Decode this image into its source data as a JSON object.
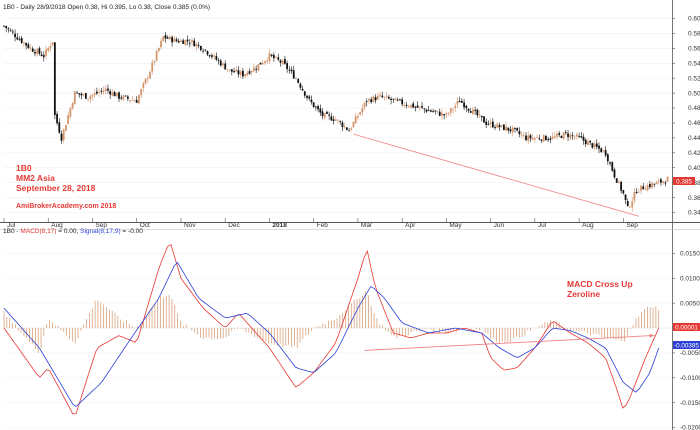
{
  "header": {
    "price_line": "1B0 - Daily 28/9/2018 Open 0.38, Hi 0.395, Lo 0.38, Close 0.385 (0.0%)",
    "macd_prefix": "1B0 - ",
    "macd_term": "MACD(8,17)",
    "macd_val": " = 0.00, ",
    "signal_term": "Signal(8,17,9)",
    "signal_val": " = -0.00"
  },
  "annotations": {
    "symbol": "1B0",
    "company": "MM2 Asia",
    "date": "September 28, 2018",
    "website": "AmiBrokerAcademy.com  2018",
    "macd_note_line1": "MACD Cross Up",
    "macd_note_line2": "Zeroline"
  },
  "badges": {
    "price": "0.385",
    "macd": "0.00001",
    "signal": "-0.00385"
  },
  "colors": {
    "up": "#d4956b",
    "down": "#111111",
    "macd": "#e53935",
    "signal": "#2c3fd6",
    "trendline": "#f08080",
    "histogram": "#d4956b"
  },
  "chart_data": [
    {
      "type": "candlestick",
      "name": "price",
      "ylim": [
        0.33,
        0.61
      ],
      "y_ticks": [
        0.6,
        0.58,
        0.56,
        0.54,
        0.52,
        0.5,
        0.48,
        0.46,
        0.44,
        0.42,
        0.4,
        0.38,
        0.36,
        0.34
      ],
      "x_labels": [
        "Jul",
        "Aug",
        "Sep",
        "Oct",
        "Nov",
        "Dec",
        "2018",
        "Feb",
        "Mar",
        "Apr",
        "May",
        "Jun",
        "Jul",
        "Aug",
        "Sep"
      ],
      "x_label_months": [
        0,
        1,
        2,
        3,
        4,
        5,
        6,
        7,
        8,
        9,
        10,
        11,
        12,
        13,
        14
      ],
      "close_path": [
        [
          0,
          0.59
        ],
        [
          0.3,
          0.575
        ],
        [
          0.6,
          0.56
        ],
        [
          0.9,
          0.55
        ],
        [
          1.1,
          0.57
        ],
        [
          1.15,
          0.47
        ],
        [
          1.3,
          0.44
        ],
        [
          1.6,
          0.5
        ],
        [
          1.9,
          0.495
        ],
        [
          2.3,
          0.505
        ],
        [
          2.6,
          0.495
        ],
        [
          3.0,
          0.49
        ],
        [
          3.3,
          0.53
        ],
        [
          3.6,
          0.575
        ],
        [
          3.9,
          0.57
        ],
        [
          4.2,
          0.57
        ],
        [
          4.5,
          0.56
        ],
        [
          4.8,
          0.545
        ],
        [
          5.1,
          0.53
        ],
        [
          5.4,
          0.525
        ],
        [
          5.7,
          0.535
        ],
        [
          6.0,
          0.55
        ],
        [
          6.3,
          0.54
        ],
        [
          6.6,
          0.52
        ],
        [
          6.9,
          0.49
        ],
        [
          7.2,
          0.47
        ],
        [
          7.5,
          0.465
        ],
        [
          7.8,
          0.45
        ],
        [
          8.0,
          0.47
        ],
        [
          8.2,
          0.49
        ],
        [
          8.5,
          0.495
        ],
        [
          8.8,
          0.49
        ],
        [
          9.1,
          0.485
        ],
        [
          9.4,
          0.48
        ],
        [
          9.7,
          0.475
        ],
        [
          10.0,
          0.47
        ],
        [
          10.3,
          0.49
        ],
        [
          10.6,
          0.475
        ],
        [
          10.9,
          0.46
        ],
        [
          11.2,
          0.455
        ],
        [
          11.5,
          0.45
        ],
        [
          11.8,
          0.44
        ],
        [
          12.1,
          0.44
        ],
        [
          12.4,
          0.44
        ],
        [
          12.7,
          0.445
        ],
        [
          13.0,
          0.44
        ],
        [
          13.3,
          0.43
        ],
        [
          13.6,
          0.42
        ],
        [
          13.8,
          0.39
        ],
        [
          14.0,
          0.365
        ],
        [
          14.1,
          0.345
        ],
        [
          14.3,
          0.37
        ],
        [
          14.5,
          0.375
        ],
        [
          14.8,
          0.38
        ],
        [
          15.0,
          0.385
        ]
      ],
      "trendline": [
        [
          7.9,
          0.445
        ],
        [
          14.35,
          0.335
        ]
      ],
      "last_close": 0.385
    },
    {
      "type": "macd",
      "name": "macd",
      "ylim": [
        -0.0205,
        0.0185
      ],
      "y_ticks": [
        0.015,
        0.01,
        0.005,
        0.0,
        -0.005,
        -0.01,
        -0.015,
        -0.02
      ],
      "y_tick_labels": [
        "0.0150",
        "0.0100",
        "0.0050",
        "0.0000",
        "-0.0050",
        "-0.0100",
        "-0.0150",
        "-0.0200"
      ],
      "series": [
        {
          "name": "MACD(8,17)",
          "values": [
            [
              0,
              0.0
            ],
            [
              0.8,
              -0.01
            ],
            [
              1.0,
              -0.008
            ],
            [
              1.6,
              -0.018
            ],
            [
              2.1,
              -0.004
            ],
            [
              2.6,
              -0.0015
            ],
            [
              3.0,
              -0.003
            ],
            [
              3.5,
              0.012
            ],
            [
              3.75,
              0.0175
            ],
            [
              4.0,
              0.01
            ],
            [
              4.5,
              0.004
            ],
            [
              5.0,
              0.0
            ],
            [
              5.3,
              0.003
            ],
            [
              6.0,
              -0.004
            ],
            [
              6.6,
              -0.012
            ],
            [
              7.0,
              -0.009
            ],
            [
              7.5,
              -0.003
            ],
            [
              8.0,
              0.01
            ],
            [
              8.2,
              0.016
            ],
            [
              8.4,
              0.008
            ],
            [
              8.8,
              -0.001
            ],
            [
              9.2,
              -0.002
            ],
            [
              9.6,
              -0.001
            ],
            [
              10.0,
              -0.001
            ],
            [
              10.4,
              0.0
            ],
            [
              10.8,
              -0.001
            ],
            [
              11.0,
              -0.006
            ],
            [
              11.3,
              -0.0085
            ],
            [
              11.6,
              -0.008
            ],
            [
              12.0,
              -0.004
            ],
            [
              12.4,
              0.0015
            ],
            [
              12.8,
              -0.001
            ],
            [
              13.2,
              -0.003
            ],
            [
              13.6,
              -0.006
            ],
            [
              13.9,
              -0.0135
            ],
            [
              14.0,
              -0.0165
            ],
            [
              14.15,
              -0.014
            ],
            [
              14.5,
              -0.006
            ],
            [
              14.8,
              0.0
            ]
          ]
        },
        {
          "name": "Signal(8,17,9)",
          "values": [
            [
              0,
              0.004
            ],
            [
              0.8,
              -0.004
            ],
            [
              1.6,
              -0.016
            ],
            [
              2.2,
              -0.011
            ],
            [
              2.8,
              -0.003
            ],
            [
              3.5,
              0.006
            ],
            [
              3.9,
              0.0135
            ],
            [
              4.4,
              0.006
            ],
            [
              5.0,
              0.002
            ],
            [
              5.5,
              0.003
            ],
            [
              6.0,
              -0.001
            ],
            [
              6.6,
              -0.008
            ],
            [
              7.0,
              -0.009
            ],
            [
              7.5,
              -0.005
            ],
            [
              8.0,
              0.004
            ],
            [
              8.3,
              0.0085
            ],
            [
              8.6,
              0.006
            ],
            [
              9.0,
              0.001
            ],
            [
              9.6,
              -0.001
            ],
            [
              10.2,
              0.0
            ],
            [
              10.8,
              -0.001
            ],
            [
              11.2,
              -0.004
            ],
            [
              11.6,
              -0.006
            ],
            [
              12.0,
              -0.004
            ],
            [
              12.4,
              0.0
            ],
            [
              12.8,
              -0.0005
            ],
            [
              13.2,
              -0.002
            ],
            [
              13.6,
              -0.004
            ],
            [
              14.0,
              -0.011
            ],
            [
              14.3,
              -0.013
            ],
            [
              14.6,
              -0.009
            ],
            [
              14.8,
              -0.004
            ]
          ]
        }
      ],
      "histogram": [
        [
          0,
          0.003
        ],
        [
          0.8,
          -0.005
        ],
        [
          1.0,
          0.002
        ],
        [
          1.6,
          -0.003
        ],
        [
          2.1,
          0.006
        ],
        [
          2.6,
          0.002
        ],
        [
          3.0,
          0.0
        ],
        [
          3.5,
          0.006
        ],
        [
          3.75,
          0.007
        ],
        [
          4.0,
          0.001
        ],
        [
          4.5,
          -0.002
        ],
        [
          5.0,
          -0.002
        ],
        [
          5.3,
          0.0
        ],
        [
          6.0,
          -0.003
        ],
        [
          6.6,
          -0.004
        ],
        [
          7.0,
          0.0
        ],
        [
          7.5,
          0.002
        ],
        [
          8.0,
          0.006
        ],
        [
          8.2,
          0.0075
        ],
        [
          8.4,
          0.002
        ],
        [
          8.8,
          -0.002
        ],
        [
          9.2,
          -0.001
        ],
        [
          9.6,
          0.0
        ],
        [
          10.0,
          -0.001
        ],
        [
          10.4,
          0.0
        ],
        [
          10.8,
          0.0
        ],
        [
          11.0,
          -0.002
        ],
        [
          11.3,
          -0.003
        ],
        [
          11.6,
          -0.002
        ],
        [
          12.0,
          0.0
        ],
        [
          12.4,
          0.0015
        ],
        [
          12.8,
          -0.0005
        ],
        [
          13.2,
          -0.001
        ],
        [
          13.6,
          -0.002
        ],
        [
          13.9,
          -0.0025
        ],
        [
          14.0,
          -0.003
        ],
        [
          14.15,
          0.0
        ],
        [
          14.4,
          0.003
        ],
        [
          14.6,
          0.0045
        ],
        [
          14.8,
          0.004
        ]
      ],
      "trendline": [
        [
          8.15,
          -0.0045
        ],
        [
          14.7,
          -0.0015
        ]
      ]
    }
  ]
}
